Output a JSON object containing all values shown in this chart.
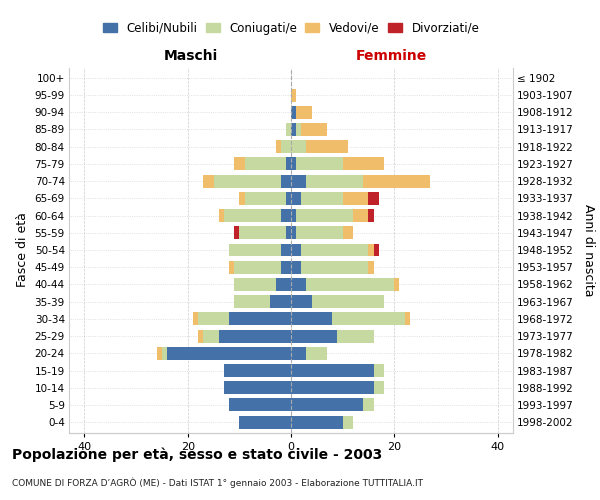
{
  "age_groups": [
    "0-4",
    "5-9",
    "10-14",
    "15-19",
    "20-24",
    "25-29",
    "30-34",
    "35-39",
    "40-44",
    "45-49",
    "50-54",
    "55-59",
    "60-64",
    "65-69",
    "70-74",
    "75-79",
    "80-84",
    "85-89",
    "90-94",
    "95-99",
    "100+"
  ],
  "birth_years": [
    "1998-2002",
    "1993-1997",
    "1988-1992",
    "1983-1987",
    "1978-1982",
    "1973-1977",
    "1968-1972",
    "1963-1967",
    "1958-1962",
    "1953-1957",
    "1948-1952",
    "1943-1947",
    "1938-1942",
    "1933-1937",
    "1928-1932",
    "1923-1927",
    "1918-1922",
    "1913-1917",
    "1908-1912",
    "1903-1907",
    "≤ 1902"
  ],
  "colors": {
    "celibi": "#4472a8",
    "coniugati": "#c5d9a0",
    "vedovi": "#f0be6a",
    "divorziati": "#c0222a"
  },
  "legend_labels": [
    "Celibi/Nubili",
    "Coniugati/e",
    "Vedovi/e",
    "Divorziati/e"
  ],
  "males": {
    "celibi": [
      10,
      12,
      13,
      13,
      24,
      14,
      12,
      4,
      3,
      2,
      2,
      1,
      2,
      1,
      2,
      1,
      0,
      0,
      0,
      0,
      0
    ],
    "coniugati": [
      0,
      0,
      0,
      0,
      1,
      3,
      6,
      7,
      8,
      9,
      10,
      9,
      11,
      8,
      13,
      8,
      2,
      1,
      0,
      0,
      0
    ],
    "vedovi": [
      0,
      0,
      0,
      0,
      1,
      1,
      1,
      0,
      0,
      1,
      0,
      0,
      1,
      1,
      2,
      2,
      1,
      0,
      0,
      0,
      0
    ],
    "divorziati": [
      0,
      0,
      0,
      0,
      0,
      0,
      0,
      0,
      0,
      0,
      0,
      1,
      0,
      0,
      0,
      0,
      0,
      0,
      0,
      0,
      0
    ]
  },
  "females": {
    "nubili": [
      10,
      14,
      16,
      16,
      3,
      9,
      8,
      4,
      3,
      2,
      2,
      1,
      1,
      2,
      3,
      1,
      0,
      1,
      1,
      0,
      0
    ],
    "coniugate": [
      2,
      2,
      2,
      2,
      4,
      7,
      14,
      14,
      17,
      13,
      13,
      9,
      11,
      8,
      11,
      9,
      3,
      1,
      0,
      0,
      0
    ],
    "vedove": [
      0,
      0,
      0,
      0,
      0,
      0,
      1,
      0,
      1,
      1,
      1,
      2,
      3,
      5,
      13,
      8,
      8,
      5,
      3,
      1,
      0
    ],
    "divorziate": [
      0,
      0,
      0,
      0,
      0,
      0,
      0,
      0,
      0,
      0,
      1,
      0,
      1,
      2,
      0,
      0,
      0,
      0,
      0,
      0,
      0
    ]
  },
  "xlim": [
    -43,
    43
  ],
  "xticks": [
    -40,
    -20,
    0,
    20,
    40
  ],
  "xtick_labels": [
    "40",
    "20",
    "0",
    "20",
    "40"
  ],
  "title": "Popolazione per età, sesso e stato civile - 2003",
  "subtitle": "COMUNE DI FORZA D’AGRÒ (ME) - Dati ISTAT 1° gennaio 2003 - Elaborazione TUTTITALIA.IT",
  "ylabel_left": "Fasce di età",
  "ylabel_right": "Anni di nascita",
  "label_maschi": "Maschi",
  "label_femmine": "Femmine",
  "femmine_color": "#cc0000",
  "background_color": "#ffffff",
  "grid_color": "#cccccc"
}
